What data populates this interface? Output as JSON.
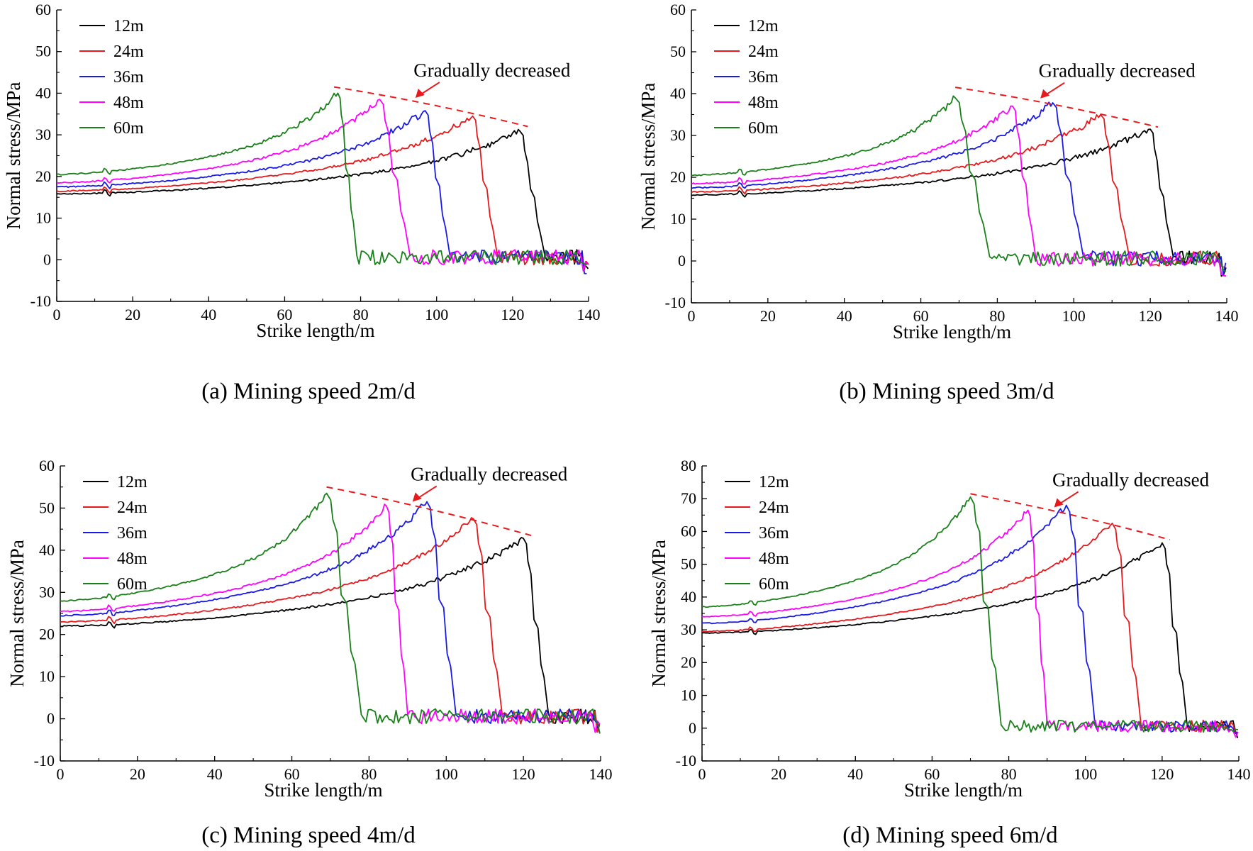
{
  "figure": {
    "description_labels": [
      "(a) Mining speed 2m/d",
      "(b) Mining speed 3m/d",
      "(c) Mining speed 4m/d",
      "(d) Mining speed 6m/d"
    ]
  },
  "colors": {
    "12m": "#000000",
    "24m": "#e8191c",
    "36m": "#1a1ae6",
    "48m": "#ff00ff",
    "60m": "#1a801a",
    "trend": "#e8191c"
  },
  "chart_data": [
    {
      "type": "line",
      "panel": "a",
      "caption": "(a) Mining speed 2m/d",
      "xlabel": "Strike length/m",
      "ylabel": "Normal stress/MPa",
      "xlim": [
        0,
        140
      ],
      "ylim": [
        -10,
        60
      ],
      "xticks": [
        0,
        20,
        40,
        60,
        80,
        100,
        120,
        140
      ],
      "yticks": [
        -10,
        0,
        10,
        20,
        30,
        40,
        50,
        60
      ],
      "legend": [
        "12m",
        "24m",
        "36m",
        "48m",
        "60m"
      ],
      "annotation": "Gradually decreased",
      "trend_line": {
        "x": [
          73,
          124
        ],
        "y": [
          41.5,
          32
        ]
      },
      "series": [
        {
          "name": "12m",
          "start": 15.8,
          "peak": 30.8,
          "peak_x": 122,
          "drop_end_x": 128.5
        },
        {
          "name": "24m",
          "start": 16.5,
          "peak": 34.5,
          "peak_x": 109.5,
          "drop_end_x": 116
        },
        {
          "name": "36m",
          "start": 17.5,
          "peak": 35.8,
          "peak_x": 97,
          "drop_end_x": 103.5
        },
        {
          "name": "48m",
          "start": 18.5,
          "peak": 38.5,
          "peak_x": 85,
          "drop_end_x": 93
        },
        {
          "name": "60m",
          "start": 20.5,
          "peak": 40,
          "peak_x": 74,
          "drop_end_x": 79
        }
      ]
    },
    {
      "type": "line",
      "panel": "b",
      "caption": "(b) Mining speed 3m/d",
      "xlabel": "Strike length/m",
      "ylabel": "Normal stress/MPa",
      "xlim": [
        0,
        140
      ],
      "ylim": [
        -10,
        60
      ],
      "xticks": [
        0,
        20,
        40,
        60,
        80,
        100,
        120,
        140
      ],
      "yticks": [
        -10,
        0,
        10,
        20,
        30,
        40,
        50,
        60
      ],
      "legend": [
        "12m",
        "24m",
        "36m",
        "48m",
        "60m"
      ],
      "annotation": "Gradually decreased",
      "trend_line": {
        "x": [
          69,
          122
        ],
        "y": [
          41.5,
          32
        ]
      },
      "series": [
        {
          "name": "12m",
          "start": 15.8,
          "peak": 31.5,
          "peak_x": 120,
          "drop_end_x": 126
        },
        {
          "name": "24m",
          "start": 16.5,
          "peak": 35,
          "peak_x": 107,
          "drop_end_x": 114.5
        },
        {
          "name": "36m",
          "start": 17.5,
          "peak": 37.8,
          "peak_x": 94.5,
          "drop_end_x": 102.5
        },
        {
          "name": "48m",
          "start": 18.5,
          "peak": 37,
          "peak_x": 84,
          "drop_end_x": 90
        },
        {
          "name": "60m",
          "start": 20.5,
          "peak": 39,
          "peak_x": 69,
          "drop_end_x": 78
        }
      ]
    },
    {
      "type": "line",
      "panel": "c",
      "caption": "(c) Mining speed 4m/d",
      "xlabel": "Strike length/m",
      "ylabel": "Normal stress/MPa",
      "xlim": [
        0,
        140
      ],
      "ylim": [
        -10,
        60
      ],
      "xticks": [
        0,
        20,
        40,
        60,
        80,
        100,
        120,
        140
      ],
      "yticks": [
        -10,
        0,
        10,
        20,
        30,
        40,
        50,
        60
      ],
      "legend": [
        "12m",
        "24m",
        "36m",
        "48m",
        "60m"
      ],
      "annotation": "Gradually decreased",
      "trend_line": {
        "x": [
          69,
          122
        ],
        "y": [
          55,
          43.5
        ]
      },
      "series": [
        {
          "name": "12m",
          "start": 22,
          "peak": 42.8,
          "peak_x": 120,
          "drop_end_x": 126.5
        },
        {
          "name": "24m",
          "start": 23,
          "peak": 47.5,
          "peak_x": 107,
          "drop_end_x": 114.5
        },
        {
          "name": "36m",
          "start": 24.5,
          "peak": 51.5,
          "peak_x": 95,
          "drop_end_x": 102.5
        },
        {
          "name": "48m",
          "start": 25.5,
          "peak": 50.5,
          "peak_x": 84.5,
          "drop_end_x": 90
        },
        {
          "name": "60m",
          "start": 28,
          "peak": 53.5,
          "peak_x": 69,
          "drop_end_x": 78
        }
      ]
    },
    {
      "type": "line",
      "panel": "d",
      "caption": "(d) Mining speed 6m/d",
      "xlabel": "Strike length/m",
      "ylabel": "Normal stress/MPa",
      "xlim": [
        0,
        140
      ],
      "ylim": [
        -10,
        80
      ],
      "xticks": [
        0,
        20,
        40,
        60,
        80,
        100,
        120,
        140
      ],
      "yticks": [
        -10,
        0,
        10,
        20,
        30,
        40,
        50,
        60,
        70,
        80
      ],
      "legend": [
        "12m",
        "24m",
        "36m",
        "48m",
        "60m"
      ],
      "annotation": "Gradually decreased",
      "trend_line": {
        "x": [
          70,
          122
        ],
        "y": [
          71.5,
          57.5
        ]
      },
      "series": [
        {
          "name": "12m",
          "start": 29,
          "peak": 56.5,
          "peak_x": 120,
          "drop_end_x": 126.5
        },
        {
          "name": "24m",
          "start": 29.5,
          "peak": 62.5,
          "peak_x": 107,
          "drop_end_x": 114.5
        },
        {
          "name": "36m",
          "start": 32,
          "peak": 68,
          "peak_x": 95,
          "drop_end_x": 102.5
        },
        {
          "name": "48m",
          "start": 34,
          "peak": 66.5,
          "peak_x": 85,
          "drop_end_x": 90
        },
        {
          "name": "60m",
          "start": 37,
          "peak": 70.5,
          "peak_x": 70,
          "drop_end_x": 78
        }
      ]
    }
  ]
}
